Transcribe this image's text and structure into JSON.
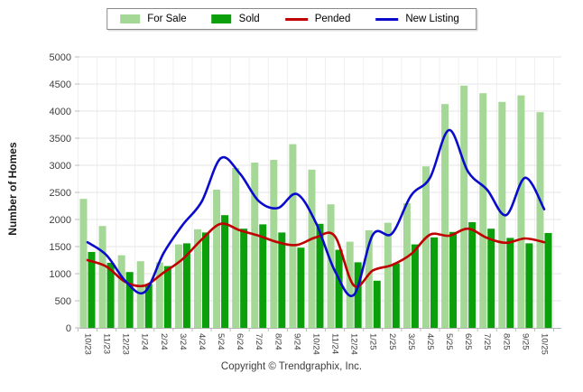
{
  "legend": {
    "items": [
      {
        "label": "For Sale",
        "swatch": "bar",
        "color": "#a5d796"
      },
      {
        "label": "Sold",
        "swatch": "bar",
        "color": "#0c9f0c"
      },
      {
        "label": "Pended",
        "swatch": "line",
        "color": "#c00000"
      },
      {
        "label": "New Listing",
        "swatch": "line",
        "color": "#0a0acd"
      }
    ]
  },
  "y_axis": {
    "title": "Number of Homes",
    "min": 0,
    "max": 5000,
    "step": 500
  },
  "footer": {
    "copyright": "Copyright © Trendgraphix, Inc."
  },
  "chart_data": {
    "type": "bar+line combo",
    "title": "",
    "xlabel": "",
    "ylabel": "Number of Homes",
    "ylim": [
      0,
      5000
    ],
    "ytick_step": 500,
    "grid": true,
    "legend_position": "top",
    "categories": [
      "10/23",
      "11/23",
      "12/23",
      "1/24",
      "2/24",
      "3/24",
      "4/24",
      "5/24",
      "6/24",
      "7/24",
      "8/24",
      "9/24",
      "10/24",
      "11/24",
      "12/24",
      "1/25",
      "2/25",
      "3/25",
      "4/25",
      "5/25",
      "6/25",
      "7/25",
      "8/25",
      "9/25",
      "10/25"
    ],
    "series": [
      {
        "name": "For Sale",
        "type": "bar",
        "color": "#a5d796",
        "values": [
          2380,
          1880,
          1340,
          1230,
          1210,
          1540,
          1820,
          2550,
          2950,
          3050,
          3100,
          3390,
          2920,
          2280,
          1590,
          1800,
          1940,
          2300,
          2980,
          4130,
          4470,
          4330,
          4170,
          4290,
          3980
        ]
      },
      {
        "name": "Sold",
        "type": "bar",
        "color": "#0c9f0c",
        "values": [
          1400,
          1200,
          1030,
          810,
          1140,
          1560,
          1760,
          2080,
          1830,
          1910,
          1760,
          1480,
          1920,
          1440,
          1210,
          870,
          1190,
          1540,
          1670,
          1770,
          1950,
          1830,
          1660,
          1560,
          1750
        ]
      },
      {
        "name": "Pended",
        "type": "line",
        "color": "#c00000",
        "values": [
          1250,
          1130,
          845,
          780,
          1020,
          1270,
          1630,
          1920,
          1800,
          1700,
          1580,
          1530,
          1670,
          1690,
          780,
          1060,
          1160,
          1360,
          1720,
          1700,
          1830,
          1660,
          1570,
          1650,
          1580
        ]
      },
      {
        "name": "New Listing",
        "type": "line",
        "color": "#0a0acd",
        "values": [
          1580,
          1340,
          860,
          660,
          1380,
          1900,
          2330,
          3130,
          2850,
          2340,
          2210,
          2470,
          1940,
          1050,
          610,
          1720,
          1740,
          2440,
          2770,
          3650,
          2880,
          2550,
          2080,
          2770,
          2190
        ]
      }
    ]
  }
}
